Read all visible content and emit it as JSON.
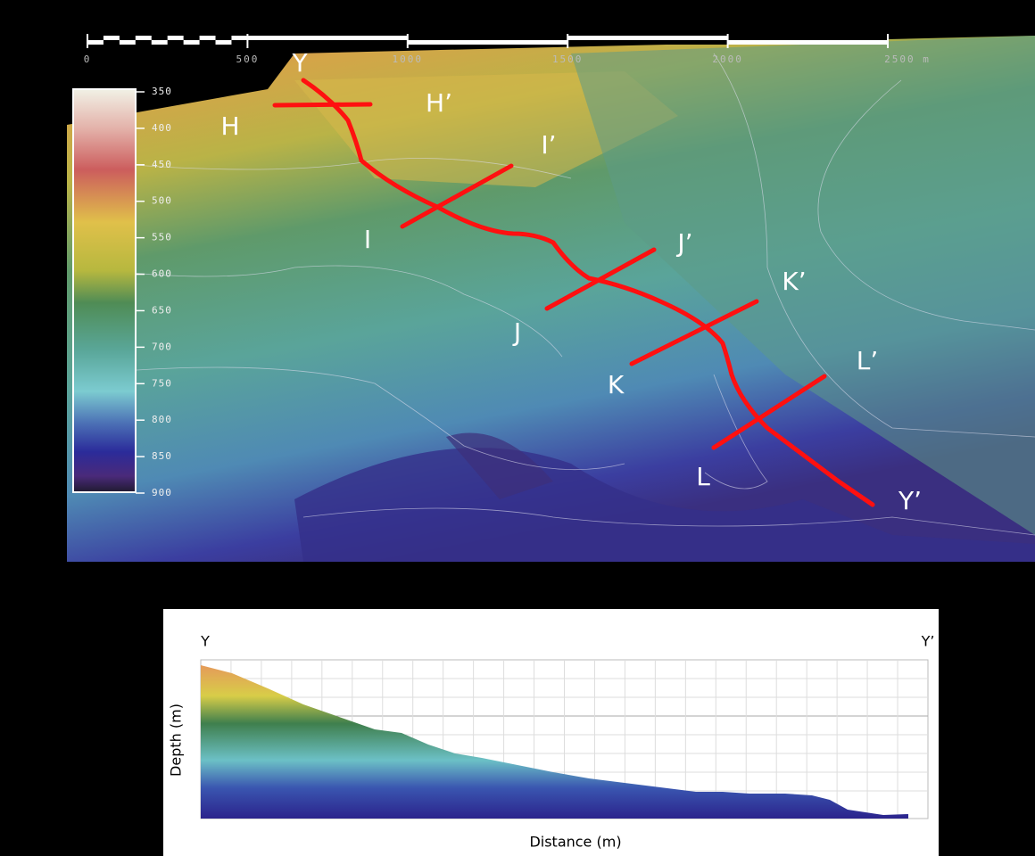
{
  "scale_bar": {
    "labels": [
      "0",
      "500",
      "1000",
      "1500",
      "2000",
      "2500 m"
    ]
  },
  "color_bar": {
    "labels": [
      350,
      400,
      450,
      500,
      550,
      600,
      650,
      700,
      750,
      800,
      850,
      900
    ]
  },
  "track": {
    "start": "Y",
    "end": "Y’"
  },
  "sections": [
    {
      "start": "H",
      "end": "H’"
    },
    {
      "start": "I",
      "end": "I’"
    },
    {
      "start": "J",
      "end": "J’"
    },
    {
      "start": "K",
      "end": "K’"
    },
    {
      "start": "L",
      "end": "L’"
    }
  ],
  "profile": {
    "start": "Y",
    "end": "Y’",
    "y_label": "Depth (m)",
    "x_label": "Distance (m)"
  }
}
